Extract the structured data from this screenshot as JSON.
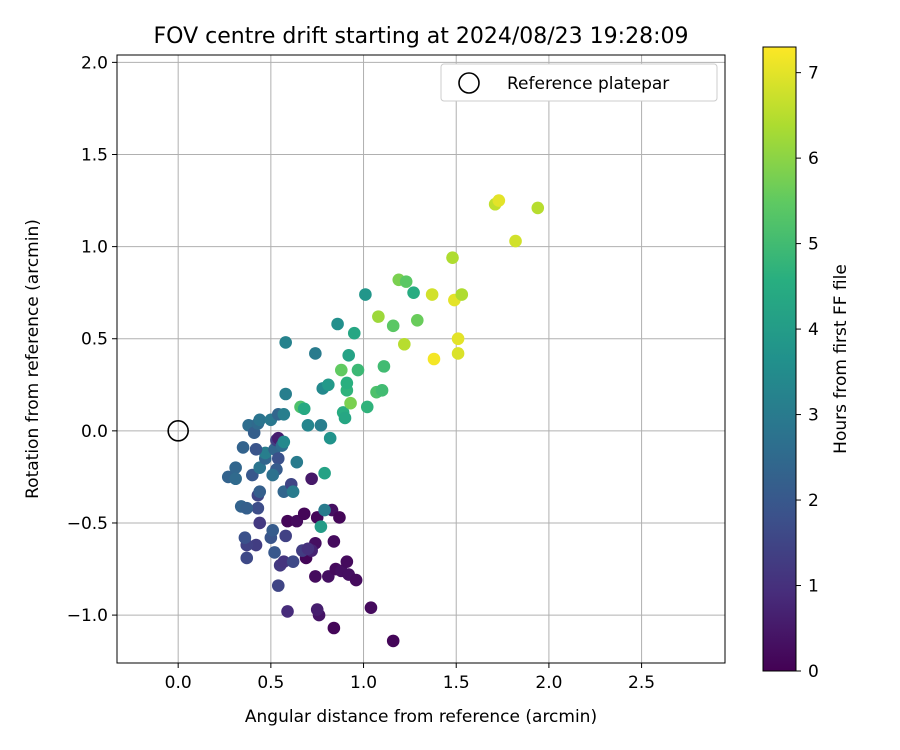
{
  "chart_data": {
    "type": "scatter",
    "title": "FOV centre drift starting at 2024/08/23 19:28:09",
    "xlabel": "Angular distance from reference (arcmin)",
    "ylabel": "Rotation from reference (arcmin)",
    "xlim": [
      -0.33,
      2.95
    ],
    "ylim": [
      -1.26,
      2.04
    ],
    "xticks": [
      0.0,
      0.5,
      1.0,
      1.5,
      2.0,
      2.5
    ],
    "xtick_labels": [
      "0.0",
      "0.5",
      "1.0",
      "1.5",
      "2.0",
      "2.5"
    ],
    "yticks": [
      -1.0,
      -0.5,
      0.0,
      0.5,
      1.0,
      1.5,
      2.0
    ],
    "ytick_labels": [
      "−1.0",
      "−0.5",
      "0.0",
      "0.5",
      "1.0",
      "1.5",
      "2.0"
    ],
    "grid": true,
    "legend": {
      "position": "top-right",
      "entries": [
        "Reference platepar"
      ]
    },
    "reference_point": {
      "x": 0.0,
      "y": 0.0,
      "label": "Reference platepar",
      "marker": "open-circle"
    },
    "colorbar": {
      "label": "Hours from first FF file",
      "range": [
        0,
        7.3
      ],
      "ticks": [
        0,
        1,
        2,
        3,
        4,
        5,
        6,
        7
      ],
      "tick_labels": [
        "0",
        "1",
        "2",
        "3",
        "4",
        "5",
        "6",
        "7"
      ],
      "colormap": "viridis"
    },
    "points": [
      {
        "x": 0.59,
        "y": -0.49,
        "c": 0.1
      },
      {
        "x": 0.64,
        "y": -0.49,
        "c": 0.2
      },
      {
        "x": 0.68,
        "y": -0.45,
        "c": 0.1
      },
      {
        "x": 0.75,
        "y": -0.47,
        "c": 0.1
      },
      {
        "x": 0.83,
        "y": -0.43,
        "c": 0.3
      },
      {
        "x": 0.87,
        "y": -0.47,
        "c": 0.1
      },
      {
        "x": 0.74,
        "y": -0.61,
        "c": 0.3
      },
      {
        "x": 0.84,
        "y": -0.6,
        "c": 0.2
      },
      {
        "x": 0.69,
        "y": -0.69,
        "c": 0.1
      },
      {
        "x": 0.74,
        "y": -0.79,
        "c": 0.2
      },
      {
        "x": 0.81,
        "y": -0.79,
        "c": 0.3
      },
      {
        "x": 0.85,
        "y": -0.75,
        "c": 0.2
      },
      {
        "x": 0.88,
        "y": -0.76,
        "c": 0.3
      },
      {
        "x": 0.91,
        "y": -0.71,
        "c": 0.2
      },
      {
        "x": 0.92,
        "y": -0.78,
        "c": 0.3
      },
      {
        "x": 0.96,
        "y": -0.81,
        "c": 0.2
      },
      {
        "x": 1.04,
        "y": -0.96,
        "c": 0.2
      },
      {
        "x": 0.76,
        "y": -1.0,
        "c": 0.4
      },
      {
        "x": 0.75,
        "y": -0.97,
        "c": 0.6
      },
      {
        "x": 0.84,
        "y": -1.07,
        "c": 0.1
      },
      {
        "x": 1.16,
        "y": -1.14,
        "c": 0.1
      },
      {
        "x": 0.59,
        "y": -0.98,
        "c": 0.9
      },
      {
        "x": 0.54,
        "y": -0.84,
        "c": 1.5
      },
      {
        "x": 0.55,
        "y": -0.73,
        "c": 1.2
      },
      {
        "x": 0.57,
        "y": -0.71,
        "c": 1.1
      },
      {
        "x": 0.62,
        "y": -0.71,
        "c": 1.6
      },
      {
        "x": 0.67,
        "y": -0.65,
        "c": 1.3
      },
      {
        "x": 0.72,
        "y": -0.65,
        "c": 0.7
      },
      {
        "x": 0.7,
        "y": -0.64,
        "c": 1.0
      },
      {
        "x": 0.52,
        "y": -0.66,
        "c": 2.0
      },
      {
        "x": 0.58,
        "y": -0.57,
        "c": 1.4
      },
      {
        "x": 0.5,
        "y": -0.58,
        "c": 1.9
      },
      {
        "x": 0.51,
        "y": -0.54,
        "c": 2.1
      },
      {
        "x": 0.42,
        "y": -0.62,
        "c": 1.3
      },
      {
        "x": 0.37,
        "y": -0.62,
        "c": 1.4
      },
      {
        "x": 0.36,
        "y": -0.58,
        "c": 1.8
      },
      {
        "x": 0.37,
        "y": -0.69,
        "c": 1.6
      },
      {
        "x": 0.44,
        "y": -0.5,
        "c": 1.2
      },
      {
        "x": 0.43,
        "y": -0.42,
        "c": 1.7
      },
      {
        "x": 0.43,
        "y": -0.35,
        "c": 1.5
      },
      {
        "x": 0.44,
        "y": -0.33,
        "c": 2.2
      },
      {
        "x": 0.34,
        "y": -0.41,
        "c": 2.3
      },
      {
        "x": 0.37,
        "y": -0.42,
        "c": 2.2
      },
      {
        "x": 0.27,
        "y": -0.25,
        "c": 2.3
      },
      {
        "x": 0.31,
        "y": -0.2,
        "c": 2.4
      },
      {
        "x": 0.31,
        "y": -0.26,
        "c": 2.5
      },
      {
        "x": 0.4,
        "y": -0.24,
        "c": 2.0
      },
      {
        "x": 0.44,
        "y": -0.2,
        "c": 2.8
      },
      {
        "x": 0.47,
        "y": -0.15,
        "c": 2.4
      },
      {
        "x": 0.47,
        "y": -0.12,
        "c": 3.1
      },
      {
        "x": 0.42,
        "y": -0.1,
        "c": 1.9
      },
      {
        "x": 0.35,
        "y": -0.09,
        "c": 2.3
      },
      {
        "x": 0.38,
        "y": 0.03,
        "c": 2.6
      },
      {
        "x": 0.41,
        "y": -0.01,
        "c": 2.2
      },
      {
        "x": 0.43,
        "y": 0.04,
        "c": 2.5
      },
      {
        "x": 0.44,
        "y": 0.06,
        "c": 2.8
      },
      {
        "x": 0.5,
        "y": 0.06,
        "c": 2.9
      },
      {
        "x": 0.54,
        "y": 0.09,
        "c": 2.4
      },
      {
        "x": 0.57,
        "y": 0.09,
        "c": 3.1
      },
      {
        "x": 0.52,
        "y": -0.1,
        "c": 2.4
      },
      {
        "x": 0.53,
        "y": -0.05,
        "c": 1.3
      },
      {
        "x": 0.54,
        "y": -0.04,
        "c": 0.6
      },
      {
        "x": 0.56,
        "y": -0.08,
        "c": 2.6
      },
      {
        "x": 0.57,
        "y": -0.06,
        "c": 3.4
      },
      {
        "x": 0.54,
        "y": -0.15,
        "c": 1.8
      },
      {
        "x": 0.53,
        "y": -0.21,
        "c": 2.1
      },
      {
        "x": 0.51,
        "y": -0.24,
        "c": 2.7
      },
      {
        "x": 0.57,
        "y": -0.33,
        "c": 2.4
      },
      {
        "x": 0.61,
        "y": -0.29,
        "c": 1.5
      },
      {
        "x": 0.62,
        "y": -0.33,
        "c": 3.0
      },
      {
        "x": 0.64,
        "y": -0.17,
        "c": 3.0
      },
      {
        "x": 0.72,
        "y": -0.26,
        "c": 0.5
      },
      {
        "x": 0.79,
        "y": -0.23,
        "c": 4.2
      },
      {
        "x": 0.77,
        "y": -0.52,
        "c": 4.0
      },
      {
        "x": 0.79,
        "y": -0.43,
        "c": 3.0
      },
      {
        "x": 0.58,
        "y": 0.2,
        "c": 3.1
      },
      {
        "x": 0.58,
        "y": 0.48,
        "c": 3.2
      },
      {
        "x": 0.66,
        "y": 0.13,
        "c": 5.2
      },
      {
        "x": 0.68,
        "y": 0.12,
        "c": 4.4
      },
      {
        "x": 0.7,
        "y": 0.03,
        "c": 3.3
      },
      {
        "x": 0.74,
        "y": 0.42,
        "c": 3.0
      },
      {
        "x": 0.77,
        "y": 0.03,
        "c": 3.1
      },
      {
        "x": 0.78,
        "y": 0.23,
        "c": 3.4
      },
      {
        "x": 0.81,
        "y": 0.25,
        "c": 3.9
      },
      {
        "x": 0.82,
        "y": -0.04,
        "c": 3.7
      },
      {
        "x": 0.86,
        "y": 0.58,
        "c": 3.6
      },
      {
        "x": 0.88,
        "y": 0.33,
        "c": 5.5
      },
      {
        "x": 0.89,
        "y": 0.1,
        "c": 4.5
      },
      {
        "x": 0.9,
        "y": 0.07,
        "c": 4.3
      },
      {
        "x": 0.91,
        "y": 0.22,
        "c": 4.7
      },
      {
        "x": 0.91,
        "y": 0.26,
        "c": 4.6
      },
      {
        "x": 0.92,
        "y": 0.41,
        "c": 4.2
      },
      {
        "x": 0.93,
        "y": 0.15,
        "c": 5.8
      },
      {
        "x": 0.95,
        "y": 0.53,
        "c": 4.3
      },
      {
        "x": 0.97,
        "y": 0.33,
        "c": 4.9
      },
      {
        "x": 1.01,
        "y": 0.74,
        "c": 3.8
      },
      {
        "x": 1.02,
        "y": 0.13,
        "c": 4.7
      },
      {
        "x": 1.07,
        "y": 0.21,
        "c": 5.2
      },
      {
        "x": 1.08,
        "y": 0.62,
        "c": 6.2
      },
      {
        "x": 1.1,
        "y": 0.22,
        "c": 5.0
      },
      {
        "x": 1.11,
        "y": 0.35,
        "c": 5.0
      },
      {
        "x": 1.16,
        "y": 0.57,
        "c": 5.4
      },
      {
        "x": 1.19,
        "y": 0.82,
        "c": 5.8
      },
      {
        "x": 1.22,
        "y": 0.47,
        "c": 6.5
      },
      {
        "x": 1.23,
        "y": 0.81,
        "c": 5.4
      },
      {
        "x": 1.27,
        "y": 0.75,
        "c": 4.5
      },
      {
        "x": 1.29,
        "y": 0.6,
        "c": 5.6
      },
      {
        "x": 1.37,
        "y": 0.74,
        "c": 6.8
      },
      {
        "x": 1.38,
        "y": 0.39,
        "c": 7.2
      },
      {
        "x": 1.48,
        "y": 0.94,
        "c": 6.4
      },
      {
        "x": 1.49,
        "y": 0.71,
        "c": 7.0
      },
      {
        "x": 1.51,
        "y": 0.42,
        "c": 6.9
      },
      {
        "x": 1.51,
        "y": 0.5,
        "c": 7.0
      },
      {
        "x": 1.53,
        "y": 0.74,
        "c": 6.4
      },
      {
        "x": 1.71,
        "y": 1.23,
        "c": 6.6
      },
      {
        "x": 1.73,
        "y": 1.25,
        "c": 7.0
      },
      {
        "x": 1.82,
        "y": 1.03,
        "c": 6.8
      },
      {
        "x": 1.94,
        "y": 1.21,
        "c": 6.5
      }
    ]
  }
}
